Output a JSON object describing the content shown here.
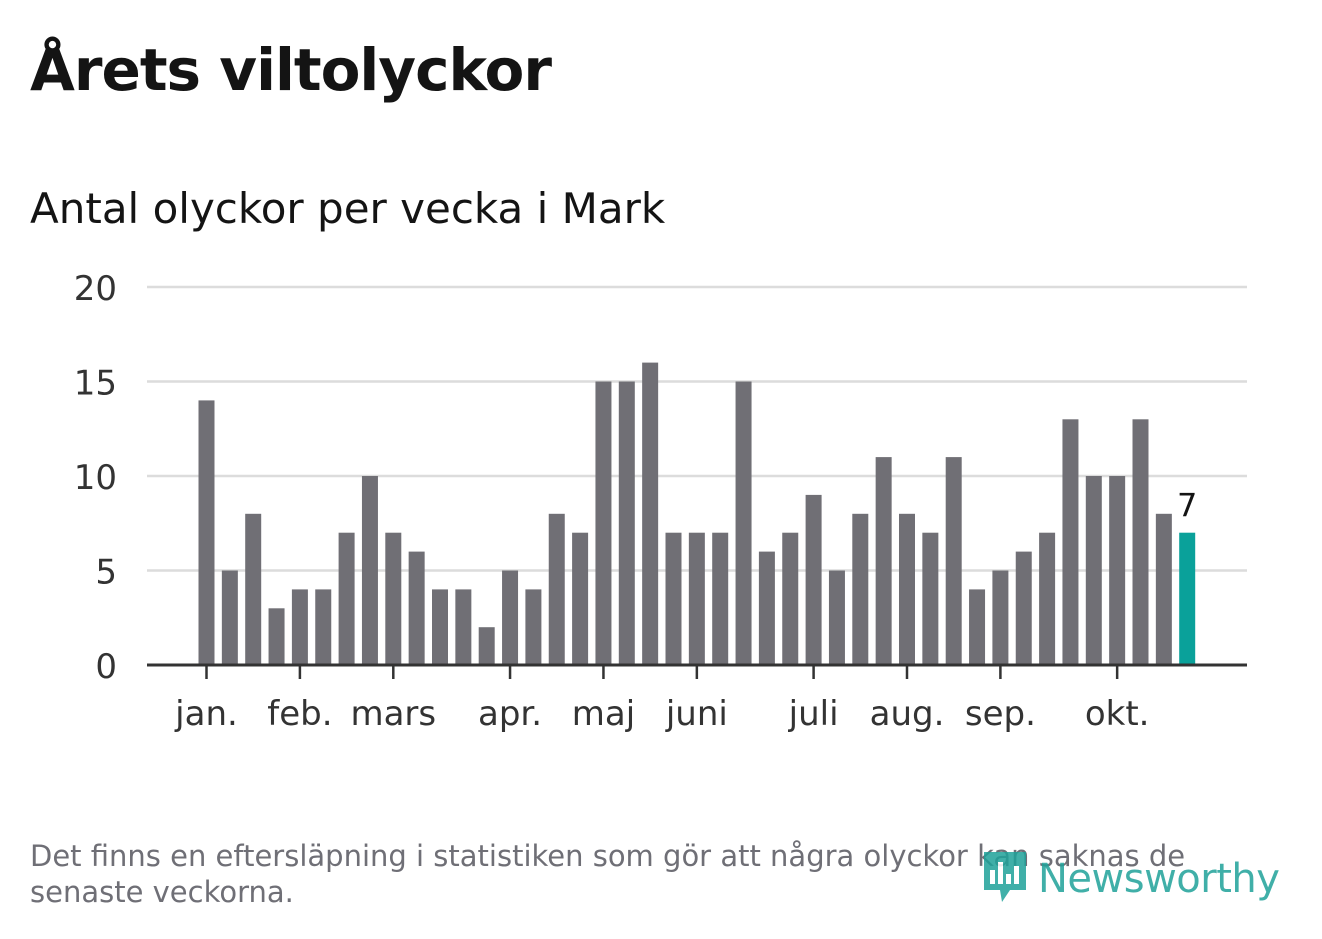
{
  "title": "Årets viltolyckor",
  "subtitle": "Antal olyckor per vecka i Mark",
  "footnote": "Det finns en eftersläpning i statistiken som gör att några olyckor kan saknas de senaste veckorna.",
  "logo": {
    "text": "Newsworthy",
    "icon": "newsworthy-logo-icon"
  },
  "colors": {
    "bar": "#706f75",
    "highlight": "#0aa19a",
    "grid": "#dcdcdc",
    "axis": "#333333",
    "text": "#141414",
    "muted": "#6f6f76"
  },
  "chart_data": {
    "type": "bar",
    "title": "Antal olyckor per vecka i Mark",
    "xlabel": "",
    "ylabel": "",
    "ylim": [
      0,
      20
    ],
    "yticks": [
      0,
      5,
      10,
      15,
      20
    ],
    "grid": true,
    "legend": "none",
    "values": [
      14,
      5,
      8,
      3,
      4,
      4,
      7,
      10,
      7,
      6,
      4,
      4,
      2,
      5,
      4,
      8,
      7,
      15,
      15,
      16,
      7,
      7,
      7,
      15,
      6,
      7,
      9,
      5,
      8,
      11,
      8,
      7,
      11,
      4,
      5,
      6,
      7,
      13,
      10,
      10,
      13,
      8,
      7
    ],
    "highlight_index": 42,
    "highlight_label": "7",
    "month_labels": [
      {
        "label": "jan.",
        "week_index": 0
      },
      {
        "label": "feb.",
        "week_index": 4
      },
      {
        "label": "mars",
        "week_index": 8
      },
      {
        "label": "apr.",
        "week_index": 13
      },
      {
        "label": "maj",
        "week_index": 17
      },
      {
        "label": "juni",
        "week_index": 21
      },
      {
        "label": "juli",
        "week_index": 26
      },
      {
        "label": "aug.",
        "week_index": 30
      },
      {
        "label": "sep.",
        "week_index": 34
      },
      {
        "label": "okt.",
        "week_index": 39
      }
    ]
  }
}
